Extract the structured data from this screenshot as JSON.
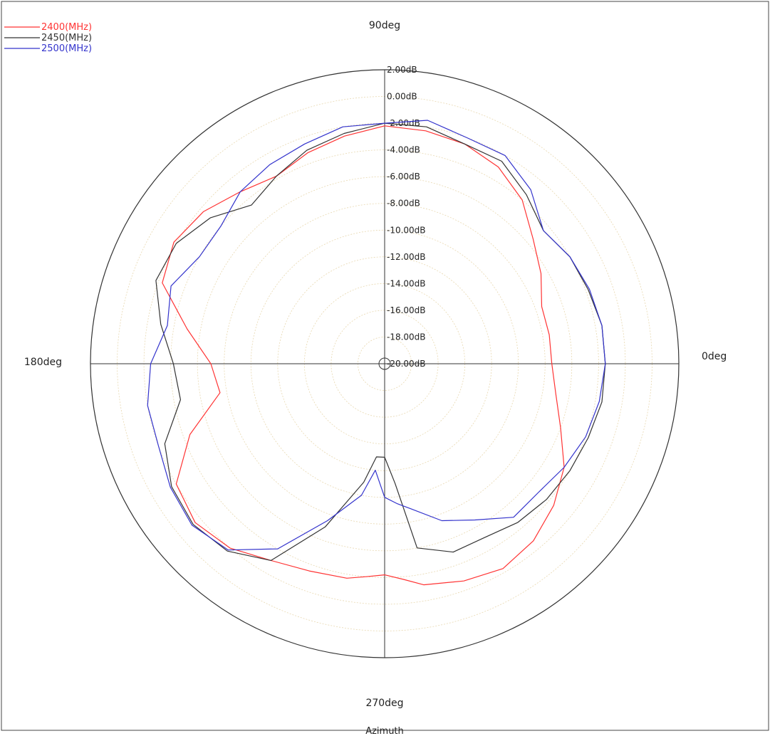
{
  "chart_data": {
    "type": "polar-line",
    "xlabel": "Azimuth",
    "angle_labels": [
      {
        "angle": 0,
        "text": "0deg"
      },
      {
        "angle": 90,
        "text": "90deg"
      },
      {
        "angle": 180,
        "text": "180deg"
      },
      {
        "angle": 270,
        "text": "270deg"
      }
    ],
    "radial_axis": {
      "min": -20,
      "max": 2,
      "ticks": [
        2,
        0,
        -2,
        -4,
        -6,
        -8,
        -10,
        -12,
        -14,
        -16,
        -18,
        -20
      ],
      "tick_labels": [
        "2.00dB",
        "0.00dB",
        "-2.00dB",
        "-4.00dB",
        "-6.00dB",
        "-8.00dB",
        "-10.00dB",
        "-12.00dB",
        "-14.00dB",
        "-16.00dB",
        "-18.00dB",
        "-20.00dB"
      ]
    },
    "legend_position": "top-left",
    "series": [
      {
        "name": "2400(MHz)",
        "color": "#ff3333",
        "angles": [
          0,
          10,
          20,
          30,
          40,
          50,
          60,
          70,
          80,
          90,
          100,
          110,
          120,
          130,
          140,
          150,
          160,
          170,
          180,
          190,
          200,
          210,
          220,
          230,
          240,
          250,
          260,
          265,
          270,
          275,
          280,
          290,
          300,
          310,
          320,
          330,
          340,
          350
        ],
        "values": [
          -7.5,
          -7.5,
          -7.5,
          -6.5,
          -5.5,
          -4,
          -3,
          -2.5,
          -2.3,
          -2.2,
          -2.7,
          -3.2,
          -3.8,
          -3.2,
          -2.3,
          -1.8,
          -2.3,
          -5,
          -7,
          -7.5,
          -4.5,
          -2,
          -1.5,
          -2,
          -3,
          -3.5,
          -3.7,
          -4,
          -4.2,
          -3.8,
          -3.2,
          -2.7,
          -2.3,
          -2.7,
          -3.5,
          -4.5,
          -6,
          -7
        ]
      },
      {
        "name": "2450(MHz)",
        "color": "#333333",
        "angles": [
          0,
          10,
          20,
          30,
          40,
          50,
          60,
          70,
          80,
          90,
          100,
          110,
          120,
          130,
          140,
          150,
          160,
          170,
          180,
          190,
          200,
          210,
          220,
          230,
          240,
          250,
          260,
          265,
          270,
          275,
          280,
          290,
          300,
          310,
          320,
          330,
          340,
          350
        ],
        "values": [
          -3.5,
          -3.5,
          -3.8,
          -4,
          -4.5,
          -3.5,
          -2.5,
          -2.5,
          -2,
          -2,
          -2.5,
          -3,
          -3.8,
          -4.5,
          -3,
          -2,
          -1.8,
          -3,
          -4.2,
          -4.5,
          -2.5,
          -1.6,
          -1.3,
          -1.7,
          -3,
          -7,
          -11,
          -13,
          -13,
          -11,
          -6,
          -5,
          -5,
          -4.5,
          -4.2,
          -4,
          -3.8,
          -3.5
        ]
      },
      {
        "name": "2500(MHz)",
        "color": "#3333cc",
        "angles": [
          0,
          10,
          20,
          30,
          40,
          50,
          60,
          70,
          80,
          90,
          100,
          110,
          120,
          130,
          140,
          150,
          160,
          170,
          180,
          190,
          200,
          210,
          220,
          230,
          240,
          250,
          260,
          265,
          270,
          275,
          280,
          290,
          300,
          310,
          320,
          330,
          340,
          350
        ],
        "values": [
          -3.5,
          -3.5,
          -3.7,
          -4,
          -4.5,
          -3,
          -2,
          -2,
          -1.5,
          -2,
          -2,
          -2.5,
          -2.8,
          -3.2,
          -4,
          -4,
          -3,
          -3.5,
          -2.5,
          -2,
          -2,
          -1.5,
          -1.2,
          -1.8,
          -4,
          -7.5,
          -10,
          -12,
          -10,
          -9.5,
          -9,
          -7.5,
          -6.5,
          -5,
          -5,
          -4.5,
          -4,
          -3.7
        ]
      }
    ]
  }
}
